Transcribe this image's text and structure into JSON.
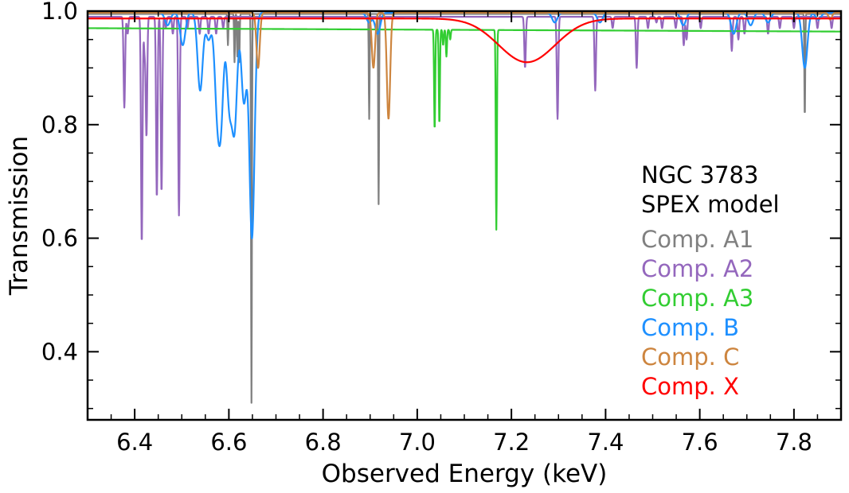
{
  "chart_data": {
    "type": "line",
    "title": "",
    "xlabel": "Observed Energy (keV)",
    "ylabel": "Transmission",
    "xlim": [
      6.3,
      7.9
    ],
    "ylim": [
      0.28,
      1.0
    ],
    "xticks": [
      6.4,
      6.6,
      6.8,
      7.0,
      7.2,
      7.4,
      7.6,
      7.8
    ],
    "xtick_labels": [
      "6.4",
      "6.6",
      "6.8",
      "7.0",
      "7.2",
      "7.4",
      "7.6",
      "7.8"
    ],
    "yticks": [
      0.4,
      0.6,
      0.8,
      1.0
    ],
    "ytick_labels": [
      "0.4",
      "0.6",
      "0.8",
      "1.0"
    ],
    "legend_title": [
      "NGC 3783",
      "SPEX model"
    ],
    "legend_position": "right",
    "series": [
      {
        "name": "Comp. A1",
        "color": "#808080",
        "baseline": 0.995,
        "width": 0.0009,
        "lines": [
          [
            6.598,
            0.94
          ],
          [
            6.612,
            0.91
          ],
          [
            6.618,
            0.92
          ],
          [
            6.622,
            0.91
          ],
          [
            6.648,
            0.31
          ],
          [
            6.898,
            0.81
          ],
          [
            6.918,
            0.66
          ],
          [
            7.823,
            0.81
          ]
        ]
      },
      {
        "name": "Comp. A2",
        "color": "#9467bd",
        "baseline": 0.99,
        "width": 0.0016,
        "lines": [
          [
            6.378,
            0.83
          ],
          [
            6.385,
            0.96
          ],
          [
            6.415,
            0.59
          ],
          [
            6.421,
            0.93
          ],
          [
            6.425,
            0.78
          ],
          [
            6.447,
            0.67
          ],
          [
            6.457,
            0.68
          ],
          [
            6.466,
            0.97
          ],
          [
            6.481,
            0.96
          ],
          [
            6.494,
            0.64
          ],
          [
            6.512,
            0.97
          ],
          [
            6.538,
            0.96
          ],
          [
            6.557,
            0.96
          ],
          [
            6.573,
            0.96
          ],
          [
            6.588,
            0.97
          ],
          [
            7.229,
            0.9
          ],
          [
            7.298,
            0.81
          ],
          [
            7.378,
            0.86
          ],
          [
            7.415,
            0.97
          ],
          [
            7.466,
            0.9
          ],
          [
            7.49,
            0.97
          ],
          [
            7.508,
            0.98
          ],
          [
            7.52,
            0.97
          ],
          [
            7.549,
            0.97
          ],
          [
            7.566,
            0.94
          ],
          [
            7.572,
            0.95
          ],
          [
            7.602,
            0.97
          ],
          [
            7.668,
            0.93
          ],
          [
            7.682,
            0.95
          ],
          [
            7.695,
            0.96
          ],
          [
            7.745,
            0.96
          ],
          [
            7.77,
            0.97
          ],
          [
            7.8,
            0.97
          ],
          [
            7.85,
            0.97
          ],
          [
            7.88,
            0.97
          ]
        ]
      },
      {
        "name": "Comp. A3",
        "color": "#32cd32",
        "baseline": 0.97,
        "baseline_end": 0.964,
        "width": 0.0012,
        "lines": [
          [
            7.037,
            0.79
          ],
          [
            7.047,
            0.8
          ],
          [
            7.055,
            0.94
          ],
          [
            7.062,
            0.92
          ],
          [
            7.07,
            0.95
          ],
          [
            7.168,
            0.615
          ]
        ]
      },
      {
        "name": "Comp. B",
        "color": "#1e90ff",
        "baseline": 0.997,
        "width": 0.0055,
        "lines": [
          [
            6.47,
            0.975
          ],
          [
            6.502,
            0.94
          ],
          [
            6.539,
            0.86
          ],
          [
            6.557,
            0.95
          ],
          [
            6.575,
            0.85
          ],
          [
            6.583,
            0.82
          ],
          [
            6.601,
            0.84
          ],
          [
            6.612,
            0.8
          ],
          [
            6.632,
            0.84
          ],
          [
            6.649,
            0.6
          ],
          [
            6.898,
            0.98
          ],
          [
            6.916,
            0.96
          ],
          [
            7.292,
            0.98
          ],
          [
            7.388,
            0.98
          ],
          [
            7.565,
            0.975
          ],
          [
            7.672,
            0.96
          ],
          [
            7.708,
            0.975
          ],
          [
            7.745,
            0.98
          ],
          [
            7.823,
            0.9
          ],
          [
            7.852,
            0.985
          ]
        ]
      },
      {
        "name": "Comp. C",
        "color": "#cd853f",
        "baseline": 0.997,
        "width": 0.0035,
        "lines": [
          [
            6.662,
            0.9
          ],
          [
            6.907,
            0.9
          ],
          [
            6.939,
            0.81
          ],
          [
            7.877,
            0.985
          ]
        ]
      },
      {
        "name": "Comp. X",
        "color": "#ff0000",
        "baseline": 0.987,
        "width": 0.06,
        "lines": [
          [
            7.233,
            0.91
          ]
        ]
      }
    ]
  }
}
